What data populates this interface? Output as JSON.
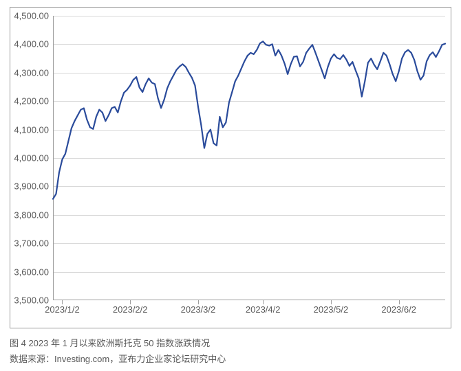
{
  "chart": {
    "type": "line",
    "background_color": "#ffffff",
    "border_color": "#999999",
    "grid_color": "#d9d9d9",
    "axis_color": "#9e9e9e",
    "tick_label_color": "#595959",
    "tick_fontsize": 13,
    "line_color": "#2a4b9b",
    "line_width": 2.2,
    "ylim": [
      3500,
      4500
    ],
    "ytick_step": 100,
    "ytick_labels": [
      "3,500.00",
      "3,600.00",
      "3,700.00",
      "3,800.00",
      "3,900.00",
      "4,000.00",
      "4,100.00",
      "4,200.00",
      "4,300.00",
      "4,400.00",
      "4,500.00"
    ],
    "xtick_positions": [
      3,
      25,
      47,
      68,
      90,
      112
    ],
    "xtick_labels": [
      "2023/1/2",
      "2023/2/2",
      "2023/3/2",
      "2023/4/2",
      "2023/5/2",
      "2023/6/2"
    ],
    "x_count": 128,
    "values": [
      3856,
      3874,
      3950,
      3995,
      4015,
      4060,
      4105,
      4130,
      4150,
      4170,
      4175,
      4135,
      4108,
      4102,
      4145,
      4170,
      4160,
      4130,
      4150,
      4175,
      4180,
      4160,
      4200,
      4230,
      4240,
      4255,
      4275,
      4285,
      4248,
      4232,
      4260,
      4280,
      4265,
      4260,
      4210,
      4176,
      4205,
      4245,
      4270,
      4290,
      4310,
      4322,
      4330,
      4320,
      4300,
      4282,
      4255,
      4180,
      4115,
      4035,
      4085,
      4100,
      4052,
      4044,
      4145,
      4108,
      4125,
      4195,
      4232,
      4270,
      4290,
      4315,
      4340,
      4360,
      4370,
      4365,
      4380,
      4403,
      4410,
      4398,
      4395,
      4400,
      4360,
      4380,
      4360,
      4332,
      4295,
      4330,
      4356,
      4358,
      4322,
      4338,
      4370,
      4385,
      4398,
      4370,
      4340,
      4310,
      4280,
      4320,
      4350,
      4365,
      4352,
      4348,
      4362,
      4346,
      4324,
      4338,
      4308,
      4280,
      4216,
      4270,
      4335,
      4350,
      4328,
      4312,
      4340,
      4370,
      4360,
      4330,
      4295,
      4270,
      4305,
      4350,
      4372,
      4380,
      4370,
      4345,
      4305,
      4275,
      4290,
      4340,
      4362,
      4372,
      4355,
      4375,
      4398,
      4402
    ]
  },
  "caption": {
    "line1": "图 4 2023 年 1 月以来欧洲斯托克 50 指数涨跌情况",
    "line2": "数据来源：Investing.com，亚布力企业家论坛研究中心"
  }
}
